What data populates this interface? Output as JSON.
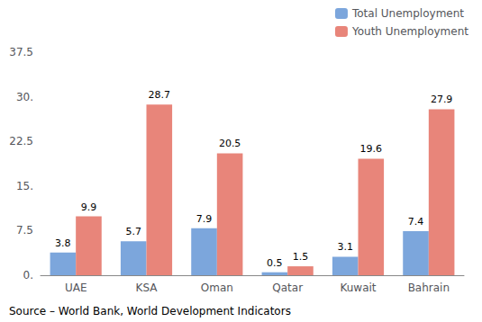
{
  "chart_data": {
    "type": "bar",
    "categories": [
      "UAE",
      "KSA",
      "Oman",
      "Qatar",
      "Kuwait",
      "Bahrain"
    ],
    "series": [
      {
        "name": "Total Unemployment",
        "color": "#7CA6DC",
        "values": [
          3.8,
          5.7,
          7.9,
          0.5,
          3.1,
          7.4
        ]
      },
      {
        "name": "Youth Unemployment",
        "color": "#E8857A",
        "values": [
          9.9,
          28.7,
          20.5,
          1.5,
          19.6,
          27.9
        ]
      }
    ],
    "ylim": [
      0,
      37.5
    ],
    "yticks": [
      {
        "value": 0,
        "label": "0."
      },
      7.5,
      {
        "value": 15,
        "label": "15."
      },
      22.5,
      {
        "value": 30,
        "label": "30."
      },
      37.5
    ],
    "grid": false,
    "legend": "upper right",
    "data_labels": true,
    "annotation": "Source – World Bank, World Development Indicators"
  }
}
